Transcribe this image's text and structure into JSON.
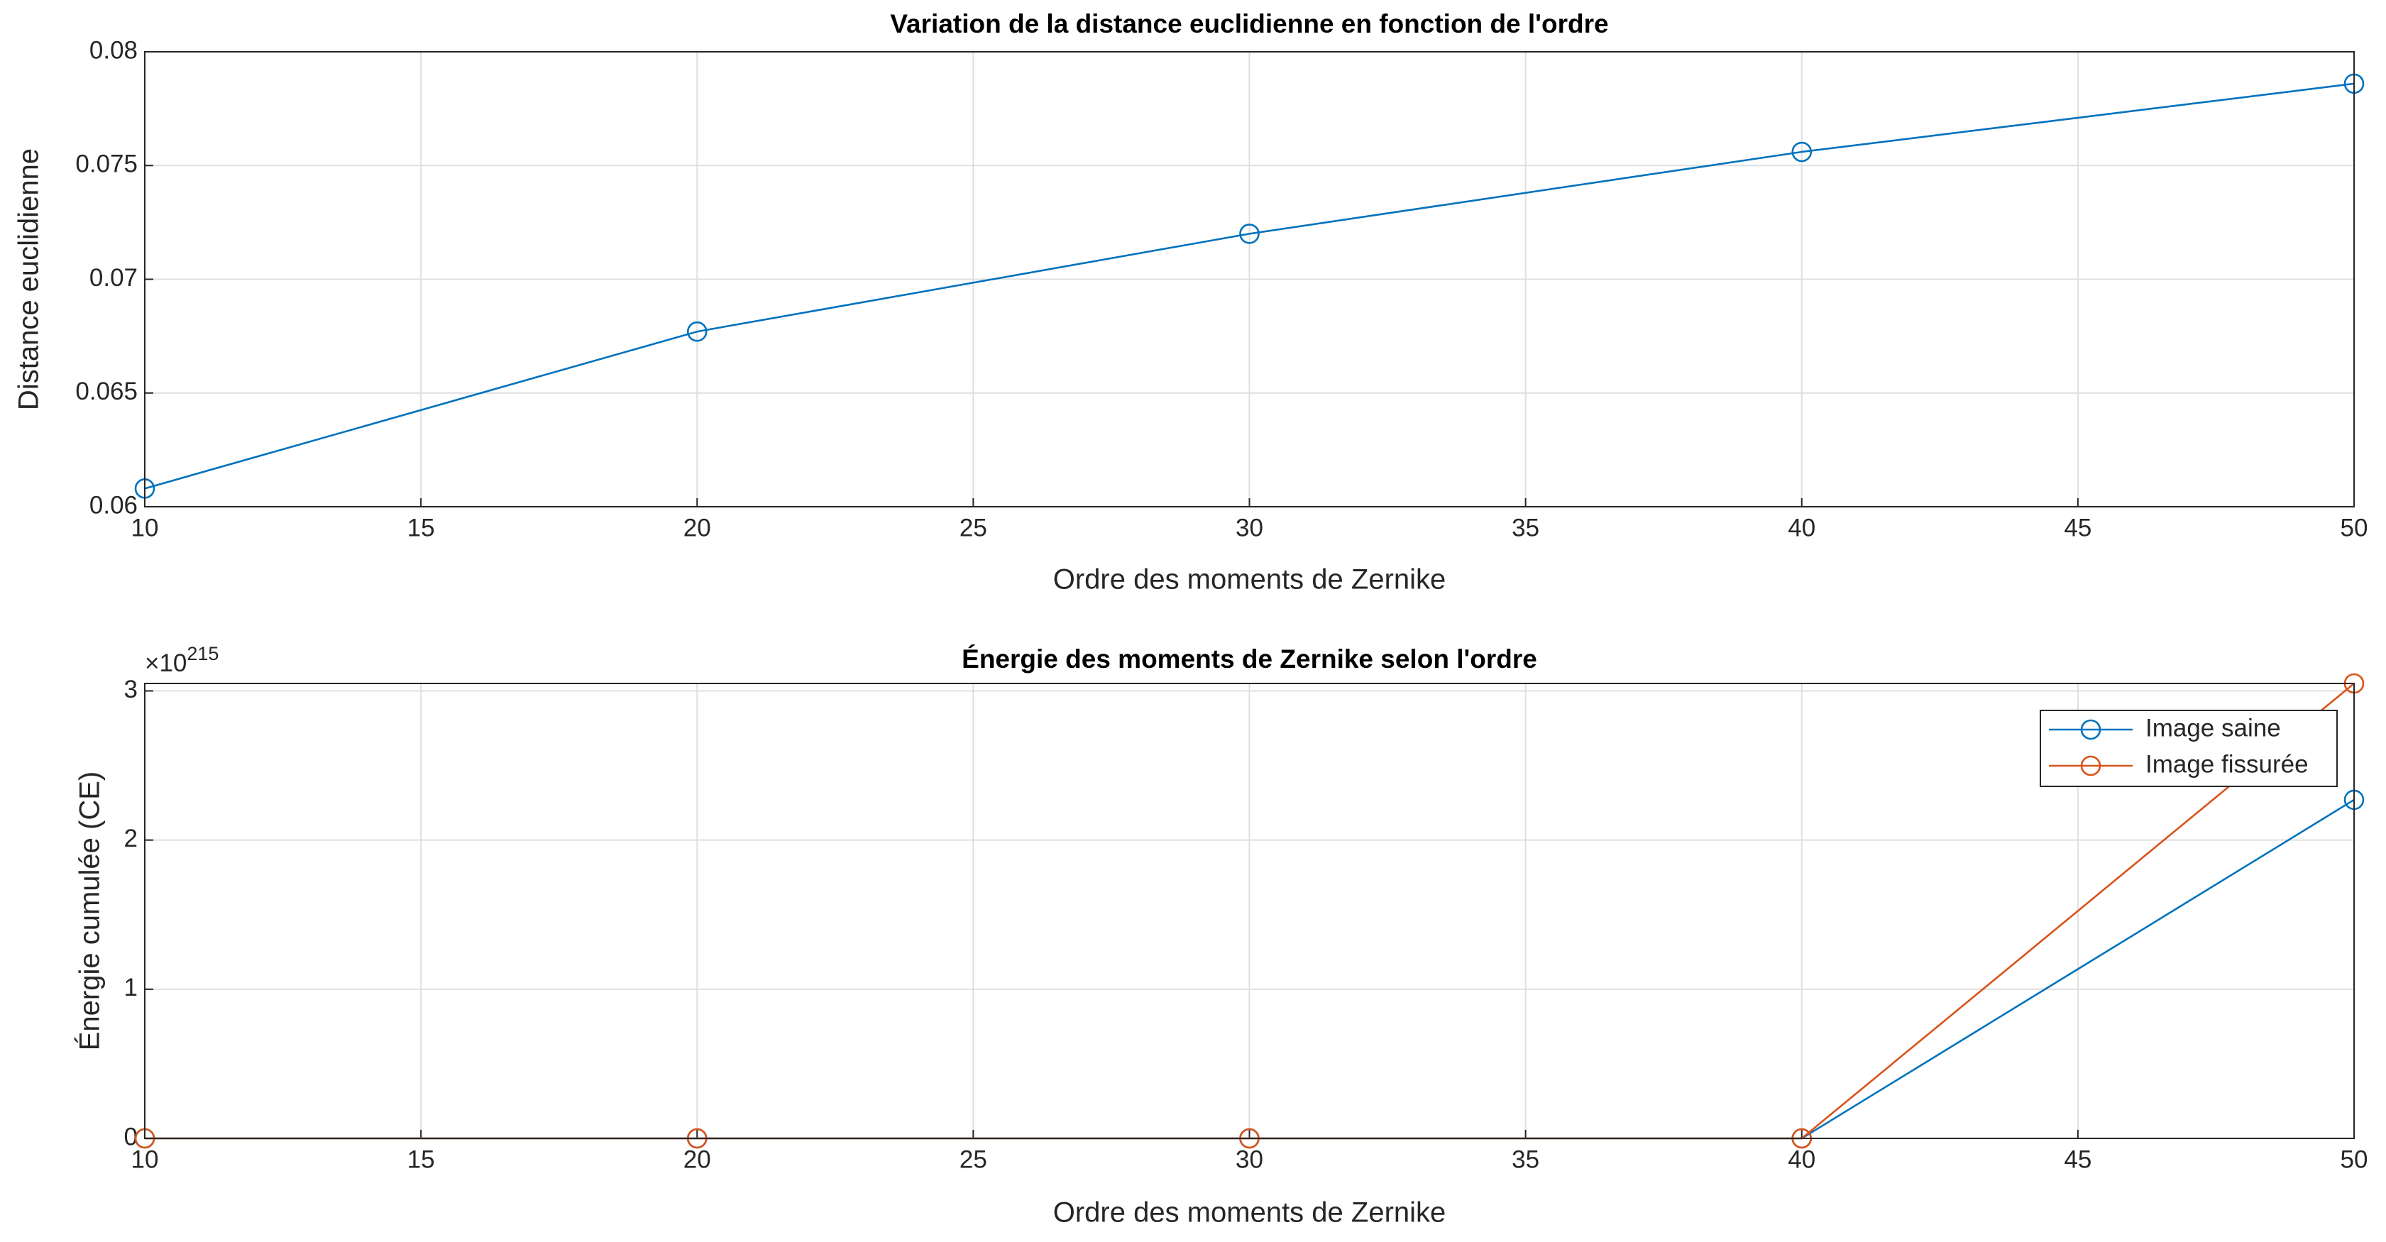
{
  "chart_data": [
    {
      "type": "line",
      "title": "Variation de la distance euclidienne en fonction de l'ordre",
      "xlabel": "Ordre des moments de Zernike",
      "ylabel": "Distance euclidienne",
      "x": [
        10,
        20,
        30,
        40,
        50
      ],
      "values": [
        0.0608,
        0.0677,
        0.072,
        0.0756,
        0.0786
      ],
      "color": "#0072bd",
      "xlim": [
        10,
        50
      ],
      "xticks": [
        10,
        15,
        20,
        25,
        30,
        35,
        40,
        45,
        50
      ],
      "ylim": [
        0.06,
        0.08
      ],
      "yticks": [
        0.06,
        0.065,
        0.07,
        0.075,
        0.08
      ],
      "grid": true
    },
    {
      "type": "line",
      "title": "Énergie des moments de Zernike selon l'ordre",
      "xlabel": "Ordre des moments de Zernike",
      "ylabel": "Énergie cumulée (CE)",
      "y_multiplier_base": "×10",
      "y_multiplier_exponent": "215",
      "x": [
        10,
        20,
        30,
        40,
        50
      ],
      "series": [
        {
          "name": "Image saine",
          "color": "#0072bd",
          "values": [
            0,
            0,
            0,
            0,
            2.27e+215
          ]
        },
        {
          "name": "Image fissurée",
          "color": "#d95319",
          "values": [
            0,
            0,
            0,
            0,
            3.05e+215
          ]
        }
      ],
      "xlim": [
        10,
        50
      ],
      "xticks": [
        10,
        15,
        20,
        25,
        30,
        35,
        40,
        45,
        50
      ],
      "ylim": [
        0,
        3.05e+215
      ],
      "yticks": [
        0,
        {
          "value": 1e+215,
          "label": "1"
        },
        {
          "value": 2e+215,
          "label": "2"
        },
        {
          "value": 3e+215,
          "label": "3"
        }
      ],
      "grid": true,
      "legend": "northeast"
    }
  ]
}
